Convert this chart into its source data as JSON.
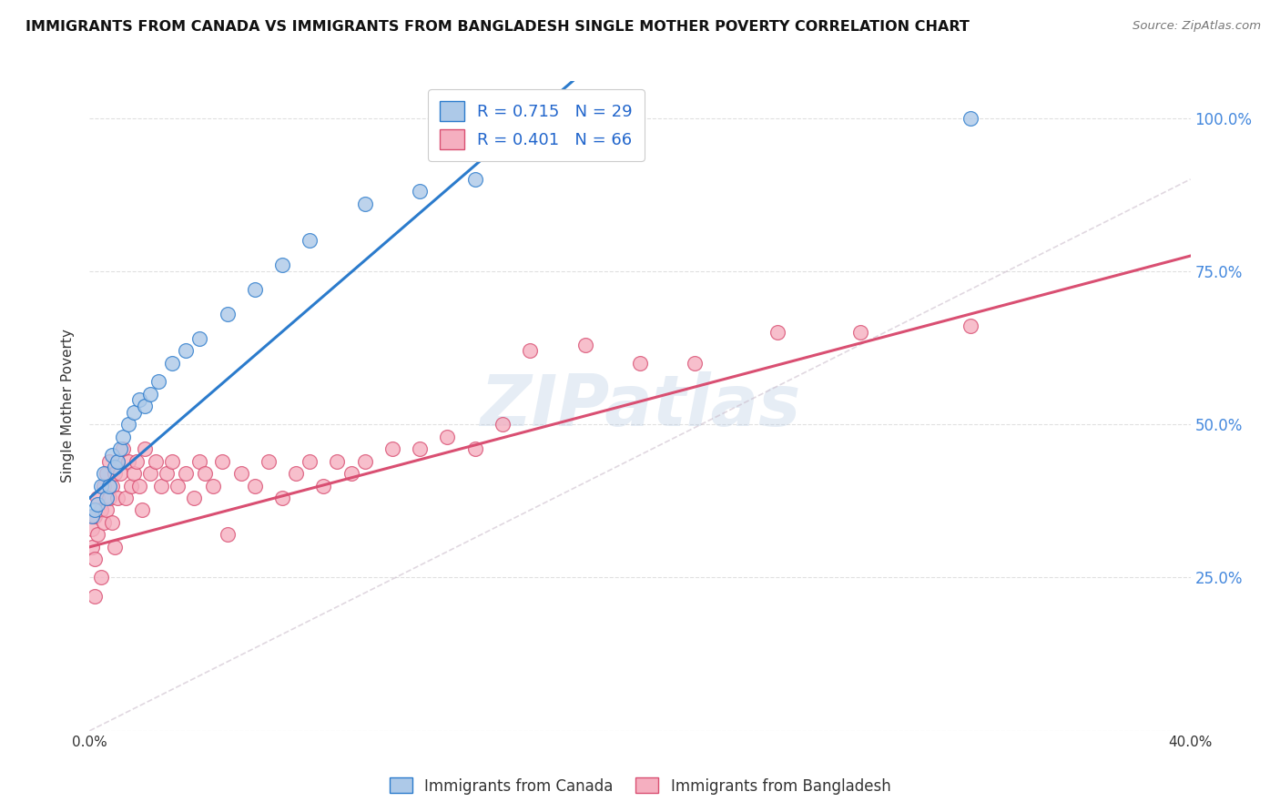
{
  "title": "IMMIGRANTS FROM CANADA VS IMMIGRANTS FROM BANGLADESH SINGLE MOTHER POVERTY CORRELATION CHART",
  "source": "Source: ZipAtlas.com",
  "legend_label1": "Immigrants from Canada",
  "legend_label2": "Immigrants from Bangladesh",
  "r1": "0.715",
  "n1": "29",
  "r2": "0.401",
  "n2": "66",
  "color_canada": "#adc9e8",
  "color_bangladesh": "#f5afc0",
  "color_line_canada": "#2b7bcc",
  "color_line_bangladesh": "#d94f72",
  "color_dashed": "#c8b8c8",
  "canada_x": [
    0.001,
    0.002,
    0.003,
    0.004,
    0.005,
    0.006,
    0.007,
    0.008,
    0.009,
    0.01,
    0.011,
    0.012,
    0.014,
    0.016,
    0.018,
    0.02,
    0.022,
    0.025,
    0.03,
    0.035,
    0.04,
    0.05,
    0.06,
    0.07,
    0.08,
    0.1,
    0.12,
    0.14,
    0.32
  ],
  "canada_y": [
    0.35,
    0.36,
    0.37,
    0.4,
    0.42,
    0.38,
    0.4,
    0.45,
    0.43,
    0.44,
    0.46,
    0.48,
    0.5,
    0.52,
    0.54,
    0.53,
    0.55,
    0.57,
    0.6,
    0.62,
    0.64,
    0.68,
    0.72,
    0.76,
    0.8,
    0.86,
    0.88,
    0.9,
    1.0
  ],
  "bangladesh_x": [
    0.001,
    0.001,
    0.002,
    0.002,
    0.002,
    0.003,
    0.003,
    0.004,
    0.004,
    0.005,
    0.005,
    0.006,
    0.006,
    0.007,
    0.007,
    0.008,
    0.008,
    0.009,
    0.009,
    0.01,
    0.01,
    0.011,
    0.012,
    0.013,
    0.014,
    0.015,
    0.016,
    0.017,
    0.018,
    0.019,
    0.02,
    0.022,
    0.024,
    0.026,
    0.028,
    0.03,
    0.032,
    0.035,
    0.038,
    0.04,
    0.042,
    0.045,
    0.048,
    0.05,
    0.055,
    0.06,
    0.065,
    0.07,
    0.075,
    0.08,
    0.085,
    0.09,
    0.095,
    0.1,
    0.11,
    0.12,
    0.13,
    0.14,
    0.15,
    0.16,
    0.18,
    0.2,
    0.22,
    0.25,
    0.28,
    0.32
  ],
  "bangladesh_y": [
    0.33,
    0.3,
    0.35,
    0.28,
    0.22,
    0.38,
    0.32,
    0.36,
    0.25,
    0.4,
    0.34,
    0.42,
    0.36,
    0.38,
    0.44,
    0.4,
    0.34,
    0.42,
    0.3,
    0.44,
    0.38,
    0.42,
    0.46,
    0.38,
    0.44,
    0.4,
    0.42,
    0.44,
    0.4,
    0.36,
    0.46,
    0.42,
    0.44,
    0.4,
    0.42,
    0.44,
    0.4,
    0.42,
    0.38,
    0.44,
    0.42,
    0.4,
    0.44,
    0.32,
    0.42,
    0.4,
    0.44,
    0.38,
    0.42,
    0.44,
    0.4,
    0.44,
    0.42,
    0.44,
    0.46,
    0.46,
    0.48,
    0.46,
    0.5,
    0.62,
    0.63,
    0.6,
    0.6,
    0.65,
    0.65,
    0.66
  ],
  "xlim": [
    0.0,
    0.4
  ],
  "ylim": [
    0.0,
    1.06
  ],
  "line_canada_x0": 0.0,
  "line_canada_y0": 0.38,
  "line_canada_x1": 0.16,
  "line_canada_y1": 1.0,
  "line_bangladesh_x0": 0.0,
  "line_bangladesh_y0": 0.3,
  "line_bangladesh_x1": 0.32,
  "line_bangladesh_y1": 0.68,
  "watermark_text": "ZIPatlas",
  "background_color": "#ffffff",
  "grid_color": "#dddddd"
}
